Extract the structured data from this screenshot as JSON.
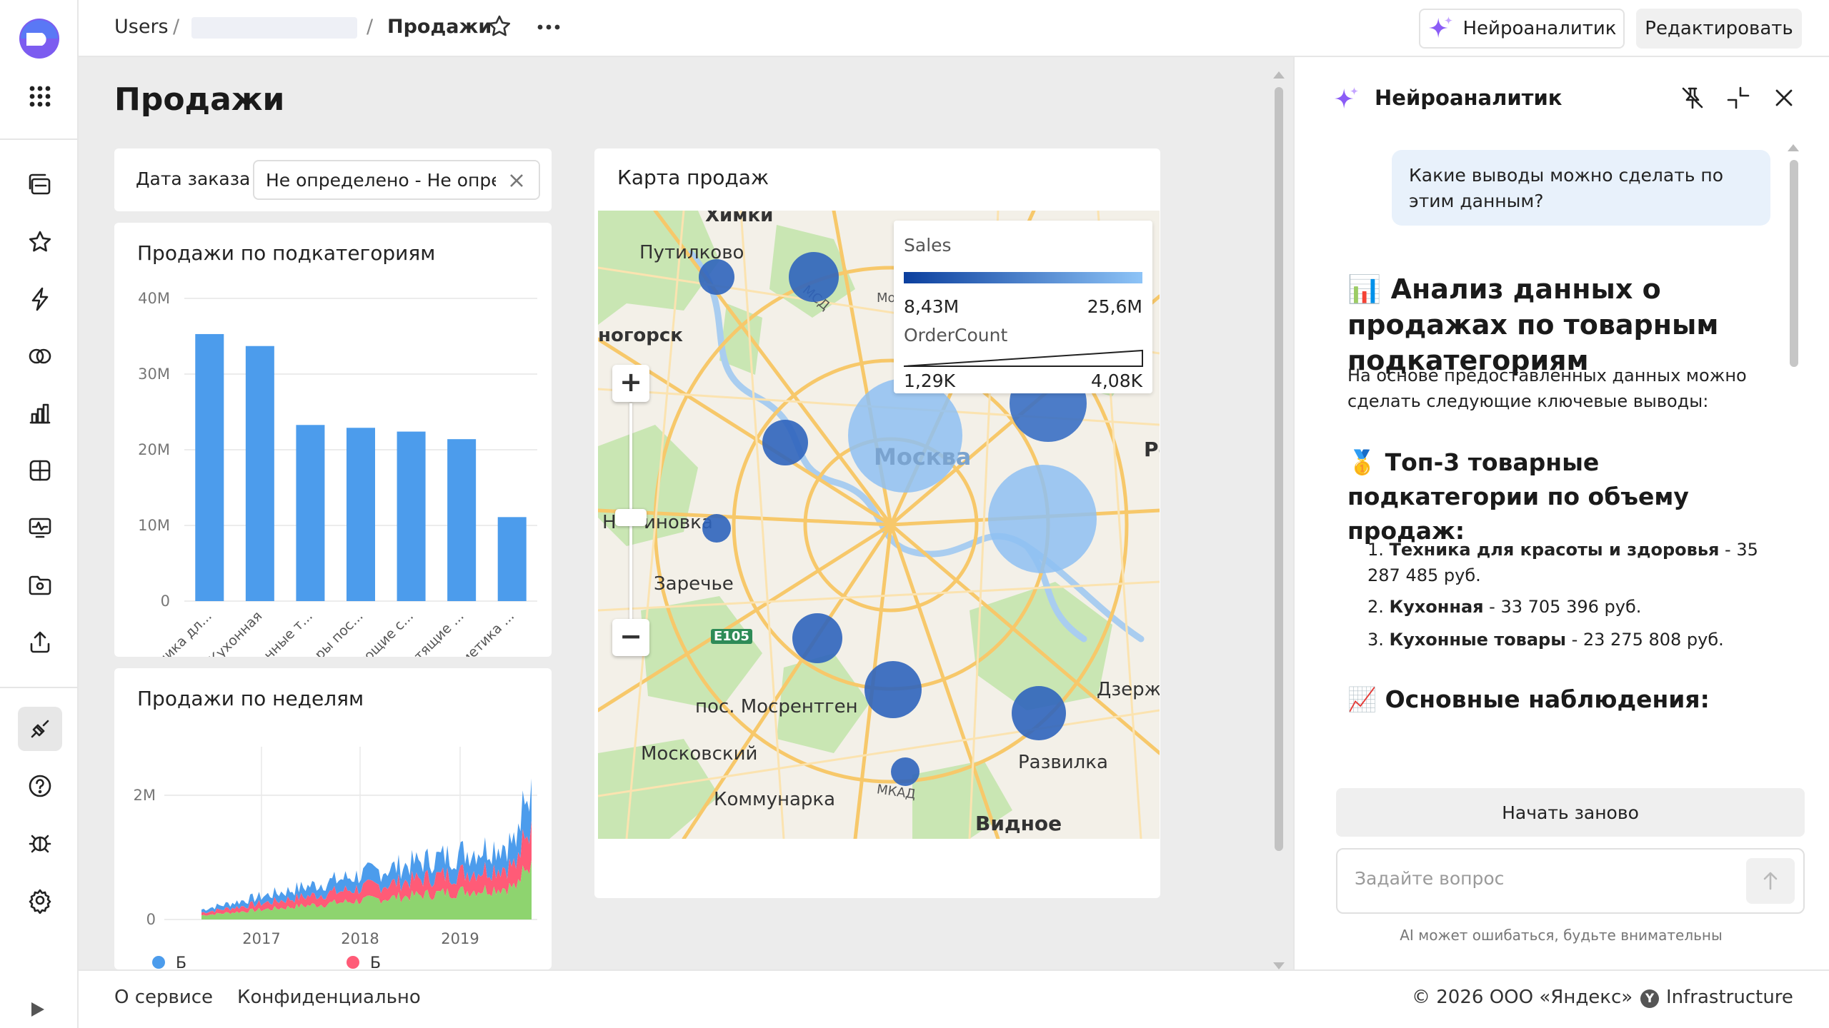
{
  "header": {
    "crumb_users": "Users",
    "crumb_sep": "/",
    "crumb_current": "Продажи",
    "ai_button": "Нейроаналитик",
    "edit_button": "Редактировать"
  },
  "dashboard": {
    "title": "Продажи",
    "filter": {
      "label": "Дата заказа",
      "value": "Не определено - Не опред"
    },
    "map_title": "Карта продаж",
    "bar_title": "Продажи по подкатегориям",
    "area_title": "Продажи по неделям"
  },
  "map": {
    "legend": {
      "sales_label": "Sales",
      "sales_min": "8,43M",
      "sales_max": "25,6M",
      "count_label": "OrderCount",
      "count_min": "1,29K",
      "count_max": "4,08K"
    },
    "places": [
      "Химки",
      "Путилково",
      "ногорск",
      "Москва",
      "Ре",
      "Н",
      "иновка",
      "Заречье",
      "пос. Мосрентген",
      "Московский",
      "Коммунарка",
      "Видное",
      "Развилка",
      "Дзерж",
      "Е105",
      "МКАД",
      "МСД",
      "Мо"
    ],
    "zoom_in": "+",
    "zoom_out": "−"
  },
  "chart_data": [
    {
      "type": "bar",
      "title": "Продажи по подкатегориям",
      "categories": [
        "Техника дл...",
        "Кухонная",
        "Кухонные т...",
        "Товары пос...",
        "Моющие с...",
        "Чистящие ...",
        "Косметика ..."
      ],
      "values": [
        35287485,
        33705396,
        23275808,
        22900000,
        22400000,
        21400000,
        11100000
      ],
      "yticks": [
        "0",
        "10M",
        "20M",
        "30M",
        "40M"
      ],
      "ylim": [
        0,
        40000000
      ],
      "color": "#4c9cec"
    },
    {
      "type": "area",
      "title": "Продажи по неделям",
      "xticks": [
        "2017",
        "2018",
        "2019"
      ],
      "yticks": [
        "0",
        "2M"
      ],
      "series_colors": [
        "#4c9cec",
        "#ff5b77",
        "#8ed46f"
      ],
      "legend_letters": [
        "Б",
        "Б"
      ]
    }
  ],
  "panel": {
    "title": "Нейроаналитик",
    "user_msg": "Какие выводы можно сделать по этим данным?",
    "h1_emoji": "📊",
    "h1": "Анализ данных о продажах по товарным подкатегориям",
    "intro": "На основе предоставленных данных можно сделать следующие ключевые выводы:",
    "h2a_emoji": "🥇",
    "h2a": "Топ-3 товарные подкатегории по объему продаж:",
    "items": [
      {
        "num": "1.",
        "bold": "Техника для красоты и здоровья",
        "rest": " - 35 287 485 руб."
      },
      {
        "num": "2.",
        "bold": "Кухонная",
        "rest": " - 33 705 396 руб."
      },
      {
        "num": "3.",
        "bold": "Кухонные товары",
        "rest": " - 23 275 808 руб."
      }
    ],
    "h2b_emoji": "📈",
    "h2b": "Основные наблюдения:",
    "restart": "Начать заново",
    "input_placeholder": "Задайте вопрос",
    "disclaimer": "AI может ошибаться, будьте внимательны"
  },
  "footer": {
    "about": "О сервисе",
    "privacy": "Конфиденциально",
    "copyright": "© 2026 ООО «Яндекс»",
    "infra_logo": "Y",
    "infra": "Infrastructure"
  }
}
